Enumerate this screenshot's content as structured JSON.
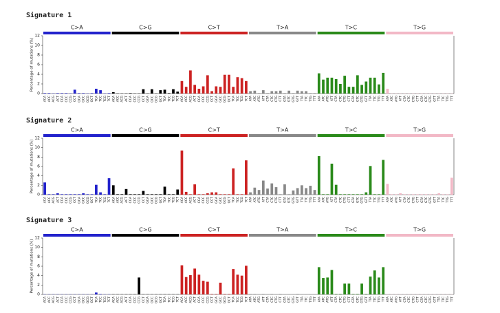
{
  "chart_data": [
    {
      "type": "bar",
      "title": "Signature 1",
      "y_label": "Percentage of mutations (%)",
      "groups": [
        {
          "name": "C>A",
          "color": "#2222cc"
        },
        {
          "name": "C>G",
          "color": "#000000"
        },
        {
          "name": "C>T",
          "color": "#cc2222"
        },
        {
          "name": "T>A",
          "color": "#888888"
        },
        {
          "name": "T>C",
          "color": "#2a8a1a"
        },
        {
          "name": "T>G",
          "color": "#f2b8c6"
        }
      ],
      "categories": [
        "ACA",
        "ACC",
        "ACG",
        "ACT",
        "CCA",
        "CCC",
        "CCG",
        "CCT",
        "GCA",
        "GCC",
        "GCG",
        "GCT",
        "TCA",
        "TCC",
        "TCG",
        "TCT",
        "ACA",
        "ACC",
        "ACG",
        "ACT",
        "CCA",
        "CCC",
        "CCG",
        "CCT",
        "GCA",
        "GCC",
        "GCG",
        "GCT",
        "TCA",
        "TCC",
        "TCG",
        "TCT",
        "ACA",
        "ACC",
        "ACG",
        "ACT",
        "CCA",
        "CCC",
        "CCG",
        "CCT",
        "GCA",
        "GCC",
        "GCG",
        "GCT",
        "TCA",
        "TCC",
        "TCG",
        "TCT",
        "ATA",
        "ATC",
        "ATG",
        "ATT",
        "CTA",
        "CTC",
        "CTG",
        "CTT",
        "GTA",
        "GTC",
        "GTG",
        "GTT",
        "TTA",
        "TTC",
        "TTG",
        "TTT",
        "ATA",
        "ATC",
        "ATG",
        "ATT",
        "CTA",
        "CTC",
        "CTG",
        "CTT",
        "GTA",
        "GTC",
        "GTG",
        "GTT",
        "TTA",
        "TTC",
        "TTG",
        "TTT",
        "ATA",
        "ATC",
        "ATG",
        "ATT",
        "CTA",
        "CTC",
        "CTG",
        "CTT",
        "GTA",
        "GTC",
        "GTG",
        "GTT",
        "TTA",
        "TTC",
        "TTG",
        "TTT"
      ],
      "values": [
        0.1,
        0.1,
        0.05,
        0.1,
        0.1,
        0.1,
        0.05,
        0.8,
        0.1,
        0.1,
        0.05,
        0.1,
        1.0,
        0.7,
        0.05,
        0.1,
        0.3,
        0.05,
        0.05,
        0.05,
        0.1,
        0.05,
        0.05,
        0.9,
        0.05,
        0.9,
        0.05,
        0.7,
        0.8,
        0.1,
        0.9,
        0.4,
        2.6,
        1.4,
        4.8,
        1.8,
        1.0,
        1.5,
        3.8,
        0.5,
        1.5,
        1.4,
        3.9,
        3.9,
        1.4,
        3.4,
        3.2,
        2.6,
        0.5,
        0.6,
        0.1,
        0.7,
        0.1,
        0.5,
        0.5,
        0.6,
        0.1,
        0.6,
        0.1,
        0.6,
        0.5,
        0.5,
        0.1,
        0.1,
        4.2,
        2.9,
        3.3,
        3.3,
        3.0,
        2.0,
        3.7,
        1.4,
        1.4,
        3.8,
        1.8,
        2.5,
        3.3,
        3.3,
        1.9,
        4.3,
        1.0,
        0.05,
        0.05,
        0.05,
        0.05,
        0.05,
        0.05,
        0.05,
        0.05,
        0.05,
        0.05,
        0.05,
        0.05,
        0.05,
        0.05,
        0.05
      ],
      "ylim": [
        0,
        12
      ],
      "yticks": [
        0,
        2,
        4,
        6,
        8,
        10,
        12
      ]
    },
    {
      "type": "bar",
      "title": "Signature 2",
      "y_label": "Percentage of mutations (%)",
      "groups": [
        {
          "name": "C>A",
          "color": "#2222cc"
        },
        {
          "name": "C>G",
          "color": "#000000"
        },
        {
          "name": "C>T",
          "color": "#cc2222"
        },
        {
          "name": "T>A",
          "color": "#888888"
        },
        {
          "name": "T>C",
          "color": "#2a8a1a"
        },
        {
          "name": "T>G",
          "color": "#f2b8c6"
        }
      ],
      "categories": [
        "ACA",
        "ACC",
        "ACG",
        "ACT",
        "CCA",
        "CCC",
        "CCG",
        "CCT",
        "GCA",
        "GCC",
        "GCG",
        "GCT",
        "TCA",
        "TCC",
        "TCG",
        "TCT",
        "ACA",
        "ACC",
        "ACG",
        "ACT",
        "CCA",
        "CCC",
        "CCG",
        "CCT",
        "GCA",
        "GCC",
        "GCG",
        "GCT",
        "TCA",
        "TCC",
        "TCG",
        "TCT",
        "ACA",
        "ACC",
        "ACG",
        "ACT",
        "CCA",
        "CCC",
        "CCG",
        "CCT",
        "GCA",
        "GCC",
        "GCG",
        "GCT",
        "TCA",
        "TCC",
        "TCG",
        "TCT",
        "ATA",
        "ATC",
        "ATG",
        "ATT",
        "CTA",
        "CTC",
        "CTG",
        "CTT",
        "GTA",
        "GTC",
        "GTG",
        "GTT",
        "TTA",
        "TTC",
        "TTG",
        "TTT",
        "ATA",
        "ATC",
        "ATG",
        "ATT",
        "CTA",
        "CTC",
        "CTG",
        "CTT",
        "GTA",
        "GTC",
        "GTG",
        "GTT",
        "TTA",
        "TTC",
        "TTG",
        "TTT",
        "ATA",
        "ATC",
        "ATG",
        "ATT",
        "CTA",
        "CTC",
        "CTG",
        "CTT",
        "GTA",
        "GTC",
        "GTG",
        "GTT",
        "TTA",
        "TTC",
        "TTG",
        "TTT"
      ],
      "values": [
        2.6,
        0.1,
        0.1,
        0.3,
        0.1,
        0.1,
        0.1,
        0.1,
        0.1,
        0.3,
        0.1,
        0.1,
        2.1,
        0.5,
        0.1,
        3.5,
        2.0,
        0.1,
        0.1,
        1.2,
        0.1,
        0.1,
        0.1,
        0.8,
        0.1,
        0.1,
        0.1,
        0.1,
        1.7,
        0.1,
        0.1,
        1.1,
        9.4,
        0.6,
        0.1,
        2.2,
        0.1,
        0.1,
        0.3,
        0.5,
        0.5,
        0.1,
        0.1,
        0.1,
        5.6,
        0.1,
        0.1,
        7.3,
        0.5,
        1.5,
        1.0,
        3.0,
        1.3,
        2.4,
        1.6,
        0.1,
        2.2,
        0.1,
        0.9,
        1.4,
        2.0,
        1.4,
        1.9,
        1.0,
        8.2,
        0.1,
        0.1,
        6.6,
        2.1,
        0.1,
        0.1,
        0.1,
        0.1,
        0.1,
        0.1,
        0.5,
        6.1,
        0.1,
        0.1,
        7.4,
        2.3,
        0.1,
        0.1,
        0.3,
        0.1,
        0.1,
        0.1,
        0.1,
        0.1,
        0.1,
        0.1,
        0.1,
        0.3,
        0.1,
        0.1,
        3.6
      ],
      "ylim": [
        0,
        12
      ],
      "yticks": [
        0,
        2,
        4,
        6,
        8,
        10,
        12
      ]
    },
    {
      "type": "bar",
      "title": "Signature 3",
      "y_label": "Percentage of mutations (%)",
      "groups": [
        {
          "name": "C>A",
          "color": "#2222cc"
        },
        {
          "name": "C>G",
          "color": "#000000"
        },
        {
          "name": "C>T",
          "color": "#cc2222"
        },
        {
          "name": "T>A",
          "color": "#888888"
        },
        {
          "name": "T>C",
          "color": "#2a8a1a"
        },
        {
          "name": "T>G",
          "color": "#f2b8c6"
        }
      ],
      "categories": [
        "ACA",
        "ACC",
        "ACG",
        "ACT",
        "CCA",
        "CCC",
        "CCG",
        "CCT",
        "GCA",
        "GCC",
        "GCG",
        "GCT",
        "TCA",
        "TCC",
        "TCG",
        "TCT",
        "ACA",
        "ACC",
        "ACG",
        "ACT",
        "CCA",
        "CCC",
        "CCG",
        "CCT",
        "GCA",
        "GCC",
        "GCG",
        "GCT",
        "TCA",
        "TCC",
        "TCG",
        "TCT",
        "ACA",
        "ACC",
        "ACG",
        "ACT",
        "CCA",
        "CCC",
        "CCG",
        "CCT",
        "GCA",
        "GCC",
        "GCG",
        "GCT",
        "TCA",
        "TCC",
        "TCG",
        "TCT",
        "ATA",
        "ATC",
        "ATG",
        "ATT",
        "CTA",
        "CTC",
        "CTG",
        "CTT",
        "GTA",
        "GTC",
        "GTG",
        "GTT",
        "TTA",
        "TTC",
        "TTG",
        "TTT",
        "ATA",
        "ATC",
        "ATG",
        "ATT",
        "CTA",
        "CTC",
        "CTG",
        "CTT",
        "GTA",
        "GTC",
        "GTG",
        "GTT",
        "TTA",
        "TTC",
        "TTG",
        "TTT",
        "ATA",
        "ATC",
        "ATG",
        "ATT",
        "CTA",
        "CTC",
        "CTG",
        "CTT",
        "GTA",
        "GTC",
        "GTG",
        "GTT",
        "TTA",
        "TTC",
        "TTG",
        "TTT"
      ],
      "values": [
        0.05,
        0.05,
        0.05,
        0.05,
        0.05,
        0.05,
        0.05,
        0.05,
        0.05,
        0.05,
        0.05,
        0.05,
        0.4,
        0.1,
        0.05,
        0.05,
        0.05,
        0.05,
        0.05,
        0.05,
        0.05,
        0.05,
        3.6,
        0.05,
        0.05,
        0.05,
        0.05,
        0.05,
        0.05,
        0.05,
        0.05,
        0.05,
        6.2,
        3.7,
        4.1,
        5.5,
        4.2,
        2.9,
        2.7,
        0.1,
        0.1,
        2.5,
        0.1,
        0.1,
        5.4,
        4.2,
        4.0,
        6.1,
        0.1,
        0.1,
        0.05,
        0.1,
        0.05,
        0.1,
        0.05,
        0.1,
        0.05,
        0.05,
        0.05,
        0.1,
        0.05,
        0.05,
        0.05,
        0.05,
        5.8,
        3.5,
        3.6,
        5.2,
        0.1,
        0.1,
        2.3,
        2.3,
        0.1,
        0.1,
        2.3,
        0.1,
        3.8,
        5.1,
        3.6,
        5.8,
        0.05,
        0.05,
        0.05,
        0.05,
        0.05,
        0.05,
        0.05,
        0.05,
        0.05,
        0.05,
        0.05,
        0.05,
        0.05,
        0.05,
        0.05,
        0.05
      ],
      "ylim": [
        0,
        12
      ],
      "yticks": [
        0,
        2,
        4,
        6,
        8,
        10,
        12
      ]
    }
  ]
}
